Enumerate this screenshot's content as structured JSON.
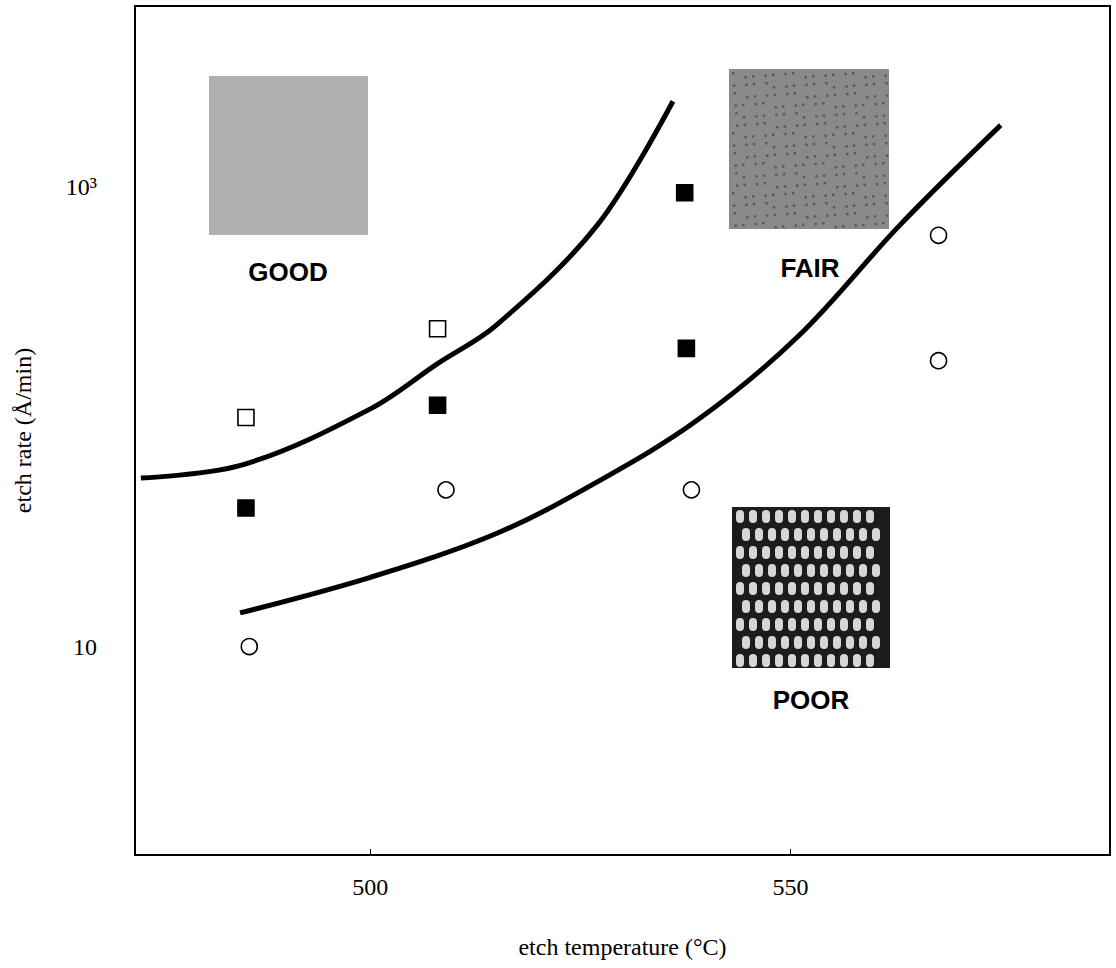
{
  "chart_data": {
    "type": "scatter",
    "x_label": "etch temperature (°C)",
    "y_label": "etch rate (Å/min)",
    "xlim": [
      472,
      588
    ],
    "ylim": [
      1.24,
      6100
    ],
    "xticks": [
      500,
      550
    ],
    "yticks": [
      10,
      {
        "value": 1000,
        "label": "10³"
      }
    ],
    "log": "y",
    "grid": false,
    "annotations": [
      "GOOD",
      "FAIR",
      "POOR"
    ],
    "series": [
      {
        "type": "line",
        "color": "#000000",
        "marker": "none",
        "line_style": "solid",
        "x": [
          472.7,
          485,
          500,
          508,
          515,
          527,
          536
        ],
        "values": [
          54,
          62,
          108,
          170,
          250,
          680,
          2350
        ]
      },
      {
        "type": "line",
        "color": "#000000",
        "marker": "none",
        "line_style": "solid",
        "x": [
          484.5,
          500,
          515,
          527,
          539,
          551,
          563,
          575
        ],
        "values": [
          14,
          20,
          31,
          52,
          97,
          225,
          680,
          1850
        ]
      },
      {
        "type": "scatter",
        "color": "#000000",
        "marker": "square_open",
        "x": [
          485.2,
          508
        ],
        "values": [
          99,
          241
        ]
      },
      {
        "type": "scatter",
        "color": "#000000",
        "marker": "square_filled",
        "x": [
          485.2,
          508,
          537.4,
          537.6
        ],
        "values": [
          40,
          112,
          940,
          198
        ]
      },
      {
        "type": "scatter",
        "color": "#000000",
        "marker": "circle_open",
        "x": [
          485.6,
          509,
          538.2,
          567.6,
          567.6
        ],
        "values": [
          10,
          48,
          48,
          614,
          175
        ]
      }
    ]
  }
}
